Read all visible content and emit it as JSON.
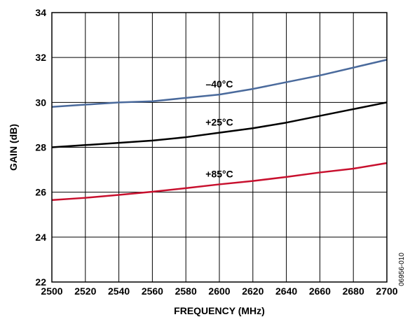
{
  "chart_data": {
    "type": "line",
    "xlabel": "FREQUENCY (MHz)",
    "ylabel": "GAIN (dB)",
    "xlim": [
      2500,
      2700
    ],
    "ylim": [
      22,
      34
    ],
    "x_ticks": [
      "2500",
      "2520",
      "2540",
      "2560",
      "2580",
      "2600",
      "2620",
      "2640",
      "2660",
      "2680",
      "2700"
    ],
    "y_ticks": [
      "22",
      "24",
      "26",
      "28",
      "30",
      "32",
      "34"
    ],
    "grid": true,
    "x": [
      2500,
      2520,
      2540,
      2560,
      2580,
      2600,
      2620,
      2640,
      2660,
      2680,
      2700
    ],
    "series": [
      {
        "name": "–40°C",
        "color": "#4a6a9c",
        "values": [
          29.8,
          29.9,
          30.0,
          30.05,
          30.2,
          30.35,
          30.6,
          30.9,
          31.2,
          31.55,
          31.9
        ]
      },
      {
        "name": "+25°C",
        "color": "#000000",
        "values": [
          28.0,
          28.1,
          28.2,
          28.3,
          28.45,
          28.65,
          28.85,
          29.1,
          29.4,
          29.7,
          30.0
        ]
      },
      {
        "name": "+85°C",
        "color": "#c8102e",
        "values": [
          25.65,
          25.75,
          25.88,
          26.02,
          26.18,
          26.35,
          26.5,
          26.68,
          26.88,
          27.05,
          27.3
        ]
      }
    ],
    "figure_id": "06956-010"
  }
}
